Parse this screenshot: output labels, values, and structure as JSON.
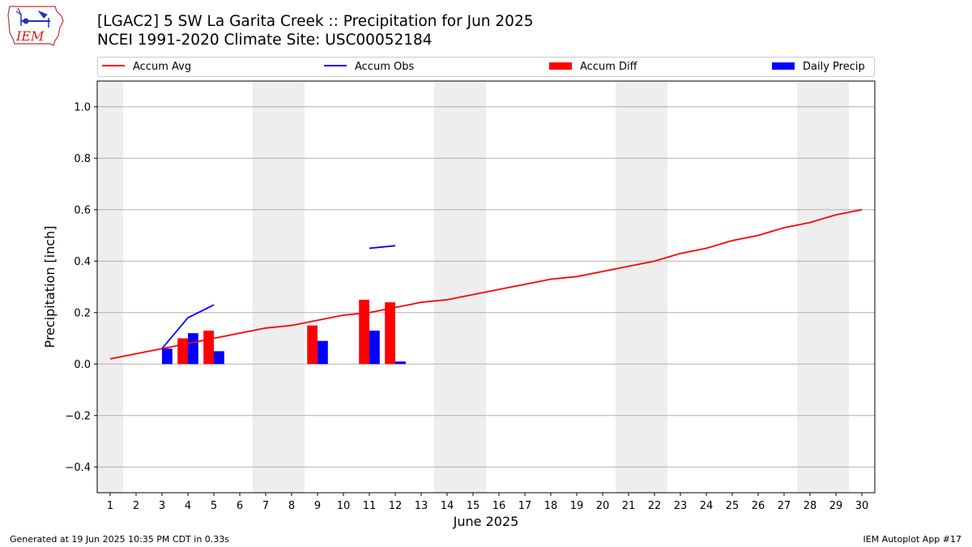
{
  "header": {
    "title_line1": "[LGAC2] 5 SW La Garita Creek :: Precipitation for Jun 2025",
    "title_line2": "NCEI 1991-2020 Climate Site: USC00052184",
    "logo_text": "IEM"
  },
  "footer": {
    "generated": "Generated at 19 Jun 2025 10:35 PM CDT in 0.33s",
    "app": "IEM Autoplot App #17"
  },
  "colors": {
    "accum_avg": "#ff0000",
    "accum_obs": "#0000ff",
    "accum_diff": "#ff0000",
    "daily_precip": "#0000ff",
    "weekend_band": "#eeeeee",
    "grid": "#b0b0b0"
  },
  "chart_data": {
    "type": "bar",
    "xlabel": "June 2025",
    "ylabel": "Precipitation [inch]",
    "xlim": [
      0.5,
      30.5
    ],
    "ylim": [
      -0.5,
      1.1
    ],
    "x_ticks": [
      1,
      2,
      3,
      4,
      5,
      6,
      7,
      8,
      9,
      10,
      11,
      12,
      13,
      14,
      15,
      16,
      17,
      18,
      19,
      20,
      21,
      22,
      23,
      24,
      25,
      26,
      27,
      28,
      29,
      30
    ],
    "y_ticks": [
      -0.4,
      -0.2,
      0.0,
      0.2,
      0.4,
      0.6,
      0.8,
      1.0
    ],
    "y_tick_labels": [
      "−0.4",
      "−0.2",
      "0.0",
      "0.2",
      "0.4",
      "0.6",
      "0.8",
      "1.0"
    ],
    "grid": "horizontal",
    "legend_position": "top",
    "weekend_bands": [
      [
        0.5,
        1.5
      ],
      [
        6.5,
        8.5
      ],
      [
        13.5,
        15.5
      ],
      [
        20.5,
        22.5
      ],
      [
        27.5,
        29.5
      ]
    ],
    "series": [
      {
        "name": "Accum Avg",
        "kind": "line",
        "x": [
          1,
          2,
          3,
          4,
          5,
          6,
          7,
          8,
          9,
          10,
          11,
          12,
          13,
          14,
          15,
          16,
          17,
          18,
          19,
          20,
          21,
          22,
          23,
          24,
          25,
          26,
          27,
          28,
          29,
          30
        ],
        "values": [
          0.02,
          0.04,
          0.06,
          0.08,
          0.1,
          0.12,
          0.14,
          0.15,
          0.17,
          0.19,
          0.2,
          0.22,
          0.24,
          0.25,
          0.27,
          0.29,
          0.31,
          0.33,
          0.34,
          0.36,
          0.38,
          0.4,
          0.43,
          0.45,
          0.48,
          0.5,
          0.53,
          0.55,
          0.58,
          0.6
        ]
      },
      {
        "name": "Accum Obs",
        "kind": "line",
        "segments": [
          {
            "x": [
              3,
              4,
              5
            ],
            "values": [
              0.06,
              0.18,
              0.23
            ]
          },
          {
            "x": [
              11,
              12
            ],
            "values": [
              0.45,
              0.46
            ]
          }
        ]
      },
      {
        "name": "Accum Diff",
        "kind": "bar",
        "x": [
          4,
          5,
          9,
          11,
          12
        ],
        "values": [
          0.1,
          0.13,
          0.15,
          0.25,
          0.24
        ]
      },
      {
        "name": "Daily Precip",
        "kind": "bar",
        "x": [
          3,
          4,
          5,
          9,
          11,
          12
        ],
        "values": [
          0.06,
          0.12,
          0.05,
          0.09,
          0.13,
          0.01
        ]
      }
    ]
  }
}
